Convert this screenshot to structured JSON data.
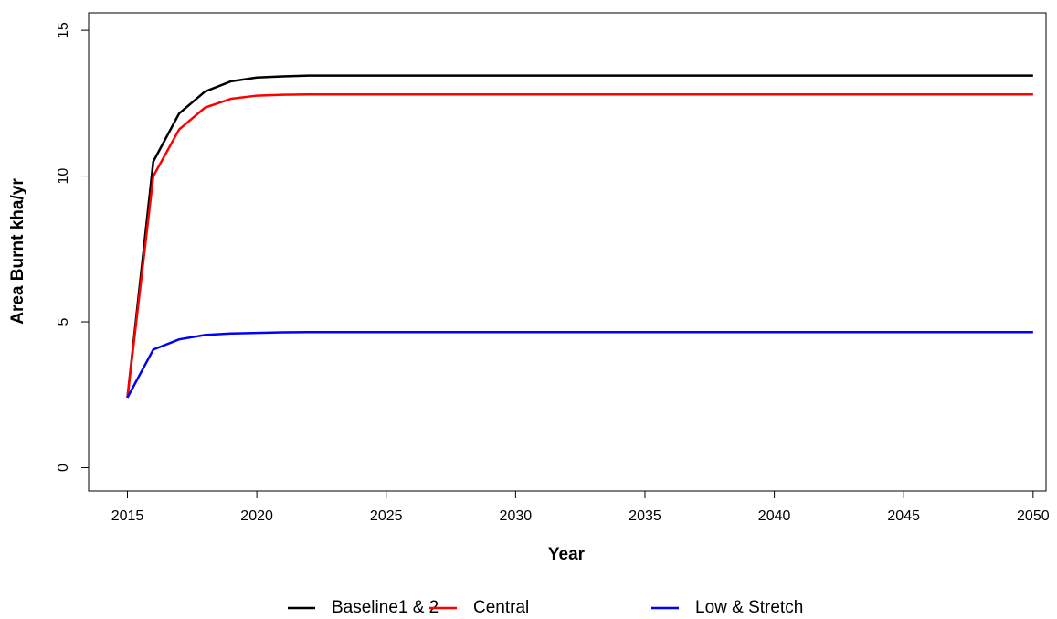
{
  "chart_data": {
    "type": "line",
    "x_label": "Year",
    "y_label": "Area Burnt kha/yr",
    "x": [
      2015,
      2016,
      2017,
      2018,
      2019,
      2020,
      2021,
      2022,
      2023,
      2024,
      2025,
      2026,
      2027,
      2028,
      2029,
      2030,
      2031,
      2032,
      2033,
      2034,
      2035,
      2036,
      2037,
      2038,
      2039,
      2040,
      2041,
      2042,
      2043,
      2044,
      2045,
      2046,
      2047,
      2048,
      2049,
      2050
    ],
    "series": [
      {
        "name": "Baseline1 & 2",
        "color": "#000000",
        "values": [
          2.4,
          10.5,
          12.15,
          12.9,
          13.25,
          13.38,
          13.42,
          13.45,
          13.45,
          13.45,
          13.45,
          13.45,
          13.45,
          13.45,
          13.45,
          13.45,
          13.45,
          13.45,
          13.45,
          13.45,
          13.45,
          13.45,
          13.45,
          13.45,
          13.45,
          13.45,
          13.45,
          13.45,
          13.45,
          13.45,
          13.45,
          13.45,
          13.45,
          13.45,
          13.45,
          13.45
        ]
      },
      {
        "name": "Central",
        "color": "#ff0000",
        "values": [
          2.4,
          10.0,
          11.6,
          12.35,
          12.65,
          12.76,
          12.79,
          12.8,
          12.8,
          12.8,
          12.8,
          12.8,
          12.8,
          12.8,
          12.8,
          12.8,
          12.8,
          12.8,
          12.8,
          12.8,
          12.8,
          12.8,
          12.8,
          12.8,
          12.8,
          12.8,
          12.8,
          12.8,
          12.8,
          12.8,
          12.8,
          12.8,
          12.8,
          12.8,
          12.8,
          12.8
        ]
      },
      {
        "name": "Low & Stretch",
        "color": "#0000ff",
        "values": [
          2.4,
          4.05,
          4.4,
          4.55,
          4.6,
          4.62,
          4.64,
          4.65,
          4.65,
          4.65,
          4.65,
          4.65,
          4.65,
          4.65,
          4.65,
          4.65,
          4.65,
          4.65,
          4.65,
          4.65,
          4.65,
          4.65,
          4.65,
          4.65,
          4.65,
          4.65,
          4.65,
          4.65,
          4.65,
          4.65,
          4.65,
          4.65,
          4.65,
          4.65,
          4.65,
          4.65
        ]
      }
    ],
    "xlim": [
      2013.5,
      2050.5
    ],
    "xticks": [
      2015,
      2020,
      2025,
      2030,
      2035,
      2040,
      2045,
      2050
    ],
    "ylim": [
      -0.8,
      15.6
    ],
    "yticks": [
      0,
      5,
      10,
      15
    ],
    "legend": "bottom"
  }
}
